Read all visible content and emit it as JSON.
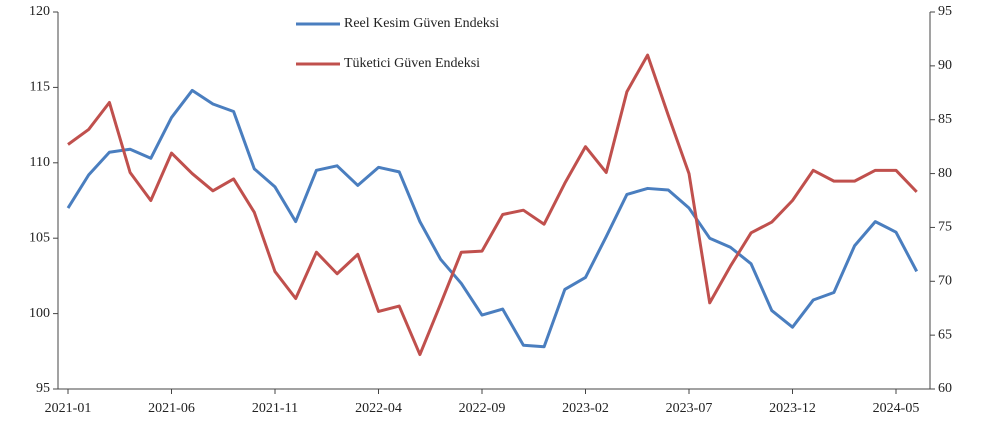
{
  "chart_data": {
    "type": "line",
    "categories": [
      "2021-01",
      null,
      null,
      null,
      null,
      "2021-06",
      null,
      null,
      null,
      null,
      "2021-11",
      null,
      null,
      null,
      null,
      "2022-04",
      null,
      null,
      null,
      null,
      "2022-09",
      null,
      null,
      null,
      null,
      "2023-02",
      null,
      null,
      null,
      null,
      "2023-07",
      null,
      null,
      null,
      null,
      "2023-12",
      null,
      null,
      null,
      null,
      "2024-05",
      null
    ],
    "series": [
      {
        "name": "Reel Kesim Güven Endeksi",
        "color": "#4a7ebf",
        "axis": "y",
        "values": [
          107.0,
          109.2,
          110.7,
          110.9,
          110.3,
          113.0,
          114.8,
          113.9,
          113.4,
          109.6,
          108.4,
          106.1,
          109.5,
          109.8,
          108.5,
          109.7,
          109.4,
          106.1,
          103.6,
          102.0,
          99.9,
          100.3,
          97.9,
          97.8,
          101.6,
          102.4,
          105.1,
          107.9,
          108.3,
          108.2,
          107.0,
          105.0,
          104.4,
          103.3,
          100.2,
          99.1,
          100.9,
          101.4,
          104.5,
          106.1,
          105.4,
          102.8
        ]
      },
      {
        "name": "Tüketici Güven Endeksi",
        "color": "#c0504d",
        "axis": "y2",
        "values": [
          82.7,
          84.1,
          86.6,
          80.1,
          77.5,
          81.9,
          80.0,
          78.4,
          79.5,
          76.4,
          70.9,
          68.4,
          72.7,
          70.7,
          72.5,
          67.2,
          67.7,
          63.2,
          67.9,
          72.7,
          72.8,
          76.2,
          76.6,
          75.3,
          79.1,
          82.5,
          80.1,
          87.6,
          91.0,
          85.4,
          80.0,
          68.0,
          71.4,
          74.5,
          75.5,
          77.5,
          80.3,
          79.3,
          79.3,
          80.3,
          80.3,
          78.3
        ]
      }
    ],
    "ylim": [
      95,
      120
    ],
    "yticks": [
      95,
      100,
      105,
      110,
      115,
      120
    ],
    "y2lim": [
      60,
      95
    ],
    "y2ticks": [
      60,
      65,
      70,
      75,
      80,
      85,
      90,
      95
    ],
    "grid": false,
    "legend": "top"
  }
}
